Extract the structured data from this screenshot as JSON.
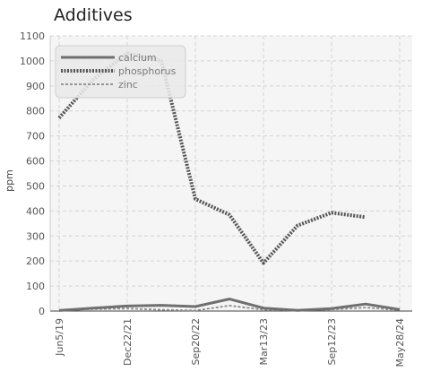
{
  "chart_data": {
    "type": "line",
    "title": "Additives",
    "xlabel": "",
    "ylabel": "ppm",
    "ylim": [
      0,
      1100
    ],
    "yticks": [
      0,
      100,
      200,
      300,
      400,
      500,
      600,
      700,
      800,
      900,
      1000,
      1100
    ],
    "x_tick_labels": [
      "Jun5/19",
      "Dec22/21",
      "Sep20/22",
      "Mar13/23",
      "Sep12/23",
      "May28/24"
    ],
    "grid": true,
    "legend_position": "top-left",
    "series": [
      {
        "name": "calcium",
        "color": "#6f6f6f",
        "style": "solid",
        "values": [
          2,
          12,
          20,
          23,
          18,
          48,
          12,
          3,
          10,
          28,
          6
        ]
      },
      {
        "name": "phosphorus",
        "color": "#555555",
        "style": "dotted",
        "values": [
          772,
          925,
          1030,
          1000,
          448,
          385,
          192,
          342,
          393,
          375,
          null
        ]
      },
      {
        "name": "zinc",
        "color": "#8a8a8a",
        "style": "dashed",
        "values": [
          4,
          8,
          10,
          5,
          2,
          22,
          5,
          2,
          6,
          14,
          4
        ]
      }
    ]
  }
}
